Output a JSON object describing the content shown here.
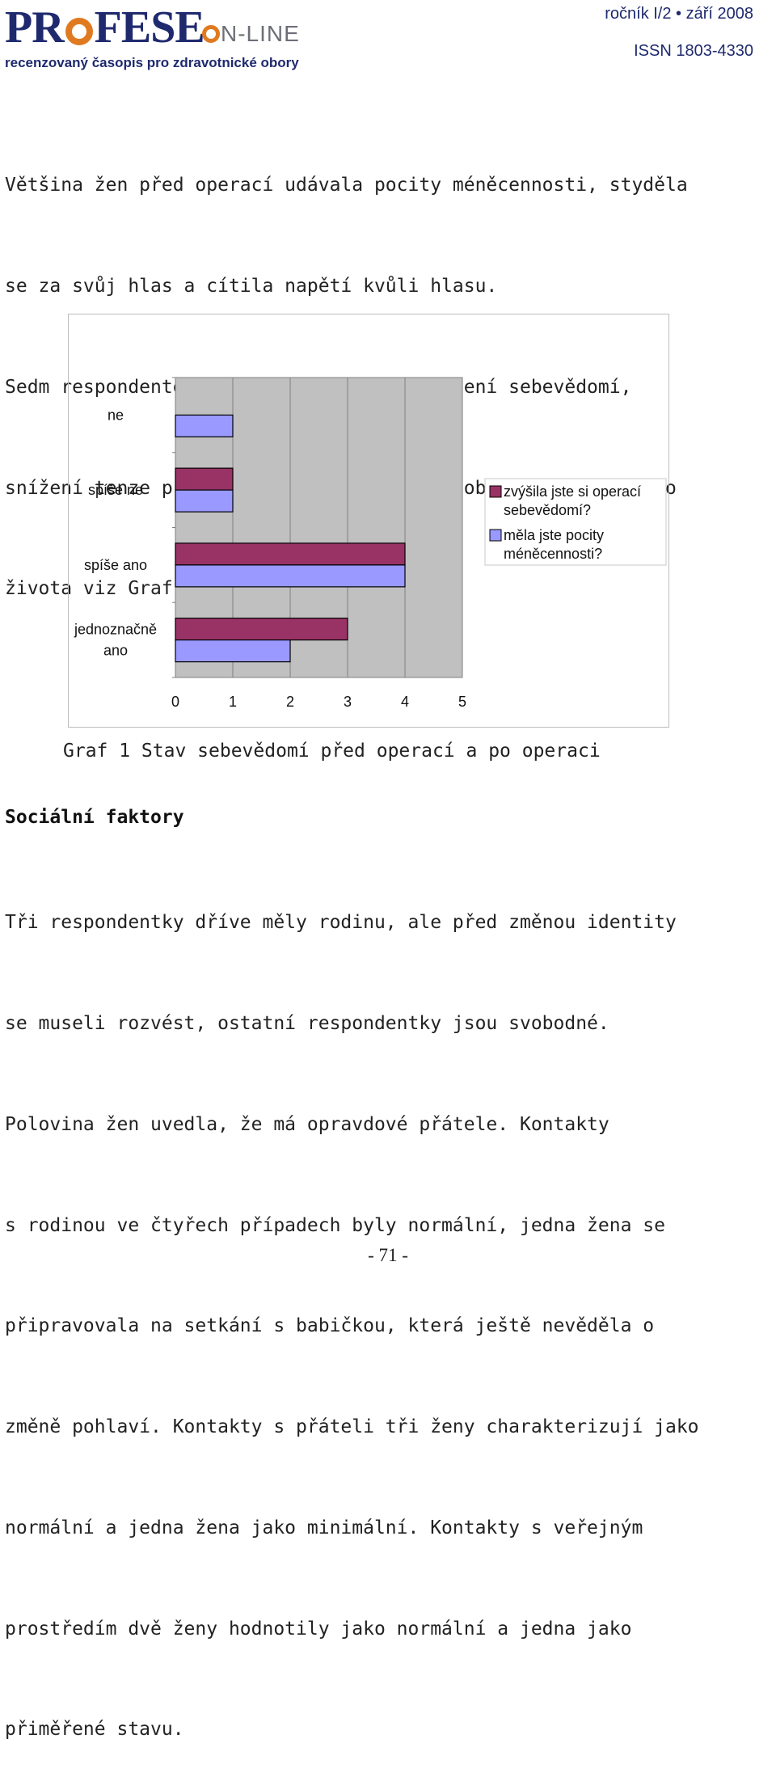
{
  "header": {
    "logo_main_left": "PR",
    "logo_main_right": "FESE",
    "logo_sub_left": "N-LINE",
    "logo_tagline": "recenzovaný časopis pro zdravotnické obory",
    "issue": "ročník I/2 • září 2008",
    "issn": "ISSN 1803-4330"
  },
  "paragraph1": [
    "Většina žen před operací udávala pocity méněcennosti, styděla",
    "se za svůj hlas a cítila napětí kvůli hlasu.",
    "Sedm respondentek udávalo po operaci zvýšení sebevědomí,",
    "snížení tenze při komunikaci, zlepšení osobního i sociálního",
    "života viz Graf 1."
  ],
  "caption": "Graf 1 Stav sebevědomí před operací a po operaci",
  "heading": "Sociální faktory",
  "paragraph2": [
    "Tři respondentky dříve měly rodinu, ale před změnou identity",
    "se museli rozvést, ostatní respondentky jsou svobodné.",
    "Polovina žen uvedla, že má opravdové přátele. Kontakty",
    "s rodinou ve čtyřech případech byly normální, jedna žena se",
    "připravovala na setkání s babičkou, která ještě nevěděla o",
    "změně pohlaví. Kontakty s přáteli tři ženy charakterizují jako",
    "normální a jedna žena jako minimální. Kontakty s veřejným",
    "prostředím dvě ženy hodnotily jako normální a jedna jako",
    "přiměřené stavu."
  ],
  "page_number": "- 71 -",
  "colors": {
    "series1": "#993366",
    "series2": "#9999ff",
    "plot_bg": "#c0c0c0",
    "text_blue": "#1f2a6e",
    "accent_orange": "#e07a20"
  },
  "chart_data": {
    "type": "bar",
    "orientation": "horizontal",
    "categories": [
      "jednoznačně ano",
      "spíše ano",
      "spíše ne",
      "ne"
    ],
    "category_labels": [
      [
        "jednoznačně",
        "ano"
      ],
      [
        "spíše ano"
      ],
      [
        "spíše ne"
      ],
      [
        "ne"
      ]
    ],
    "series": [
      {
        "name_lines": [
          "zvýšila jste si operací",
          "sebevědomí?"
        ],
        "color": "#993366",
        "values": [
          3,
          4,
          1,
          0
        ]
      },
      {
        "name_lines": [
          "měla jste pocity",
          "méněcennosti?"
        ],
        "color": "#9999ff",
        "values": [
          2,
          4,
          1,
          1
        ]
      }
    ],
    "xlim": [
      0,
      5
    ],
    "xticks": [
      "0",
      "1",
      "2",
      "3",
      "4",
      "5"
    ],
    "grid": true,
    "legend": "right"
  }
}
